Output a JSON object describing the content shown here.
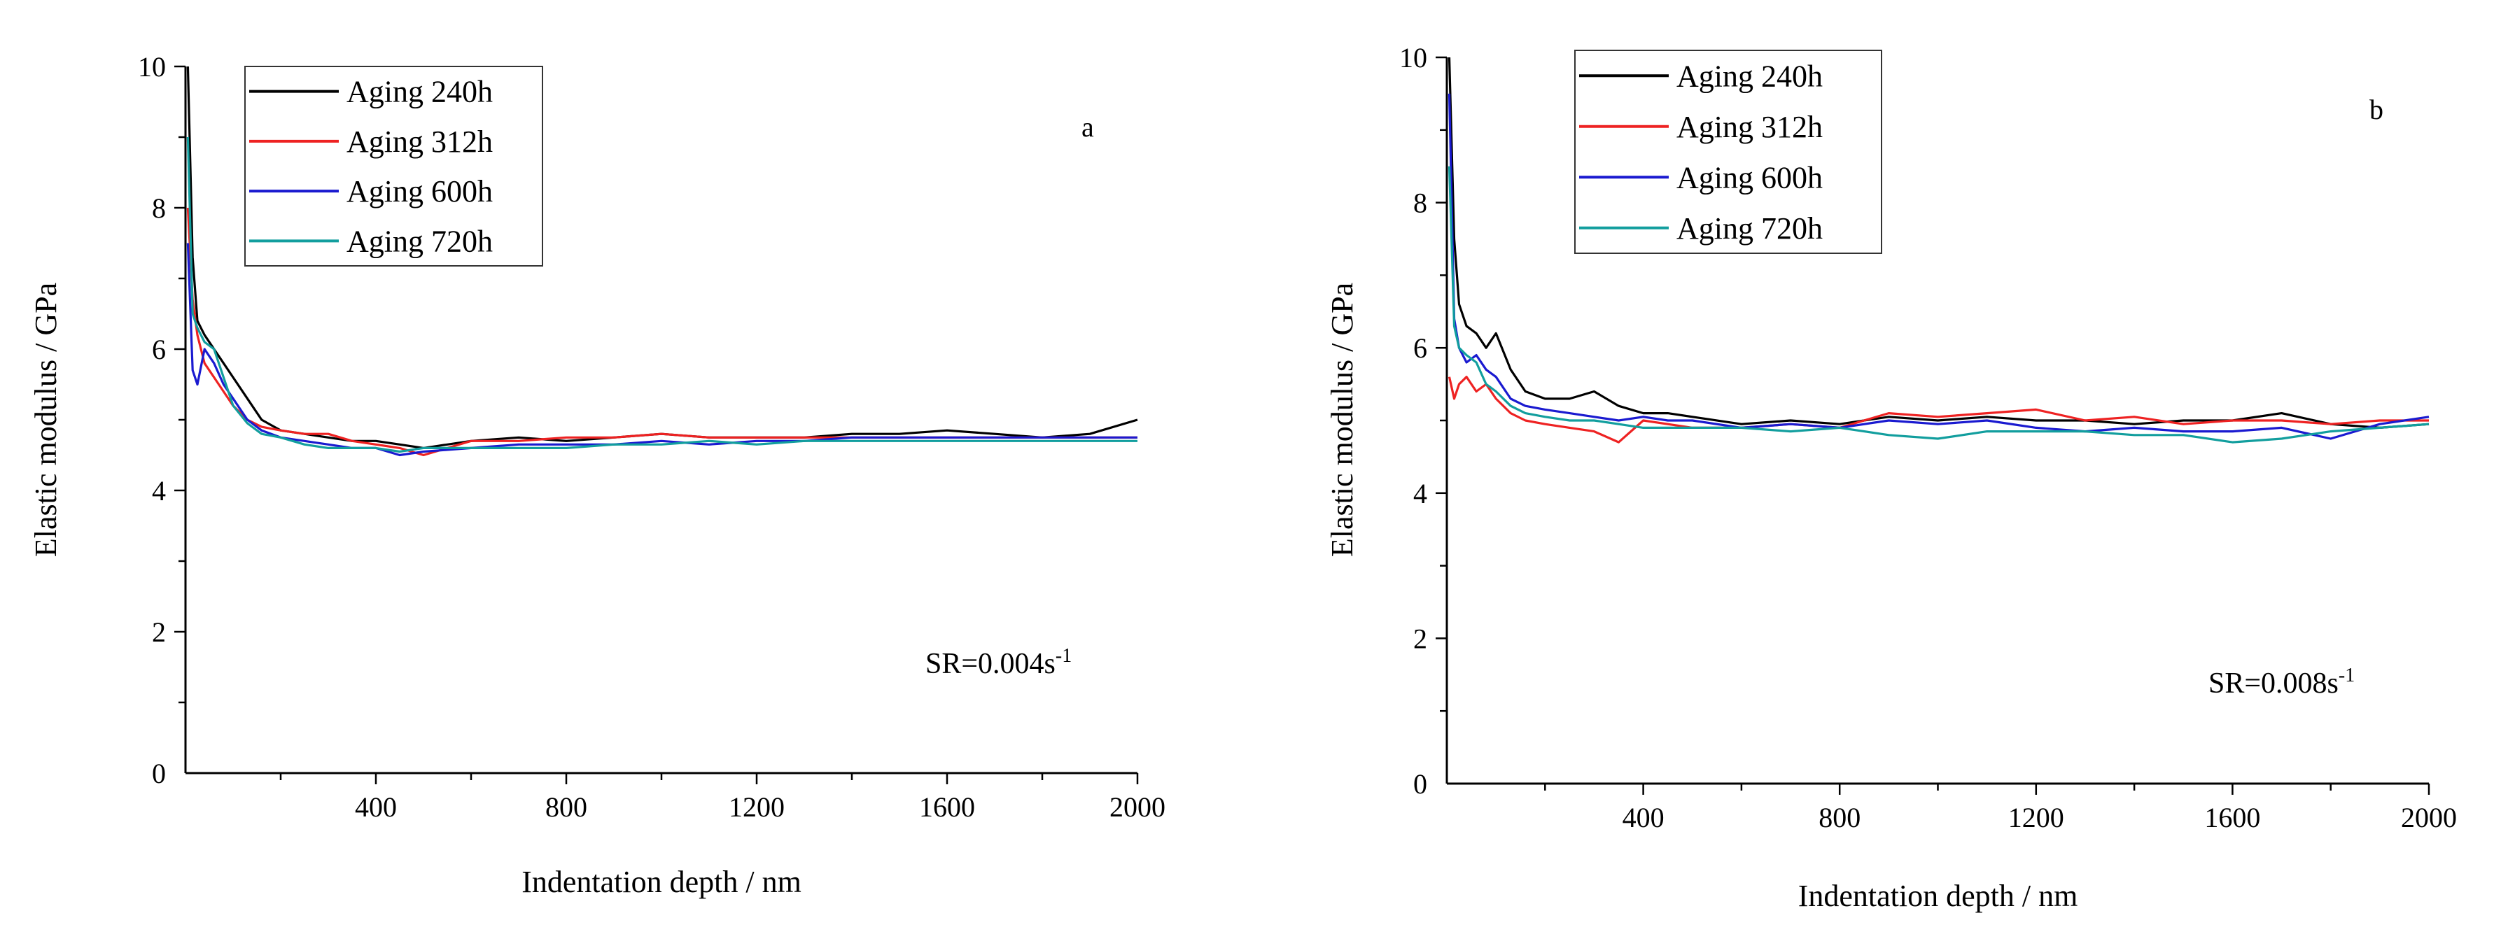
{
  "chart_data": [
    {
      "type": "line",
      "panel": "a",
      "xlabel": "Indentation depth / nm",
      "ylabel": "Elastic modulus / GPa",
      "xlim": [
        0,
        2000
      ],
      "ylim": [
        0,
        10
      ],
      "xticks": [
        400,
        800,
        1200,
        1600,
        2000
      ],
      "yticks": [
        0,
        2,
        4,
        6,
        8,
        10
      ],
      "annotation": {
        "text": "SR=0.004s",
        "sup": "-1"
      },
      "legend_position": "top-left",
      "series": [
        {
          "name": "Aging 240h",
          "color": "#000000",
          "x": [
            5,
            15,
            25,
            40,
            60,
            80,
            100,
            130,
            160,
            200,
            250,
            300,
            350,
            400,
            450,
            500,
            600,
            700,
            800,
            900,
            1000,
            1100,
            1200,
            1300,
            1400,
            1500,
            1600,
            1700,
            1800,
            1900,
            2000
          ],
          "y": [
            10.0,
            7.3,
            6.4,
            6.2,
            6.0,
            5.8,
            5.6,
            5.3,
            5.0,
            4.85,
            4.8,
            4.75,
            4.7,
            4.7,
            4.65,
            4.6,
            4.7,
            4.75,
            4.7,
            4.75,
            4.8,
            4.75,
            4.75,
            4.75,
            4.8,
            4.8,
            4.85,
            4.8,
            4.75,
            4.8,
            5.0
          ]
        },
        {
          "name": "Aging 312h",
          "color": "#ee2222",
          "x": [
            5,
            15,
            25,
            40,
            60,
            80,
            100,
            130,
            160,
            200,
            250,
            300,
            350,
            400,
            450,
            500,
            600,
            700,
            800,
            900,
            1000,
            1100,
            1200,
            1300,
            1400,
            1500,
            1600,
            1700,
            1800,
            1900,
            2000
          ],
          "y": [
            8.0,
            6.7,
            6.2,
            5.8,
            5.6,
            5.4,
            5.2,
            5.0,
            4.9,
            4.85,
            4.8,
            4.8,
            4.7,
            4.65,
            4.6,
            4.5,
            4.7,
            4.7,
            4.75,
            4.75,
            4.8,
            4.75,
            4.75,
            4.75,
            4.75,
            4.75,
            4.75,
            4.75,
            4.75,
            4.75,
            4.75
          ]
        },
        {
          "name": "Aging 600h",
          "color": "#1a1ad0",
          "x": [
            5,
            15,
            25,
            40,
            60,
            80,
            100,
            130,
            160,
            200,
            250,
            300,
            350,
            400,
            450,
            500,
            600,
            700,
            800,
            900,
            1000,
            1100,
            1200,
            1300,
            1400,
            1500,
            1600,
            1700,
            1800,
            1900,
            2000
          ],
          "y": [
            7.5,
            5.7,
            5.5,
            6.0,
            5.8,
            5.5,
            5.3,
            5.0,
            4.85,
            4.75,
            4.7,
            4.65,
            4.6,
            4.6,
            4.5,
            4.55,
            4.6,
            4.65,
            4.65,
            4.65,
            4.7,
            4.65,
            4.7,
            4.7,
            4.75,
            4.75,
            4.75,
            4.75,
            4.75,
            4.75,
            4.75
          ]
        },
        {
          "name": "Aging 720h",
          "color": "#129e9e",
          "x": [
            5,
            15,
            25,
            40,
            60,
            80,
            100,
            130,
            160,
            200,
            250,
            300,
            350,
            400,
            450,
            500,
            600,
            700,
            800,
            900,
            1000,
            1100,
            1200,
            1300,
            1400,
            1500,
            1600,
            1700,
            1800,
            1900,
            2000
          ],
          "y": [
            9.0,
            6.5,
            6.3,
            6.1,
            6.0,
            5.6,
            5.2,
            4.95,
            4.8,
            4.75,
            4.65,
            4.6,
            4.6,
            4.6,
            4.55,
            4.6,
            4.6,
            4.6,
            4.6,
            4.65,
            4.65,
            4.7,
            4.65,
            4.7,
            4.7,
            4.7,
            4.7,
            4.7,
            4.7,
            4.7,
            4.7
          ]
        }
      ],
      "legend_entries": [
        "Aging 240h",
        "Aging 312h",
        "Aging 600h",
        "Aging 720h"
      ]
    },
    {
      "type": "line",
      "panel": "b",
      "xlabel": "Indentation depth / nm",
      "ylabel": "Elastic modulus / GPa",
      "xlim": [
        0,
        2000
      ],
      "ylim": [
        0,
        10
      ],
      "xticks": [
        400,
        800,
        1200,
        1600,
        2000
      ],
      "yticks": [
        0,
        2,
        4,
        6,
        8,
        10
      ],
      "annotation": {
        "text": "SR=0.008s",
        "sup": "-1"
      },
      "legend_position": "top-left",
      "series": [
        {
          "name": "Aging 240h",
          "color": "#000000",
          "x": [
            5,
            15,
            25,
            40,
            60,
            80,
            100,
            130,
            160,
            200,
            250,
            300,
            350,
            400,
            450,
            500,
            600,
            700,
            800,
            900,
            1000,
            1100,
            1200,
            1300,
            1400,
            1500,
            1600,
            1700,
            1800,
            1900,
            2000
          ],
          "y": [
            10.0,
            7.5,
            6.6,
            6.3,
            6.2,
            6.0,
            6.2,
            5.7,
            5.4,
            5.3,
            5.3,
            5.4,
            5.2,
            5.1,
            5.1,
            5.05,
            4.95,
            5.0,
            4.95,
            5.05,
            5.0,
            5.05,
            5.0,
            5.0,
            4.95,
            5.0,
            5.0,
            5.1,
            4.95,
            4.9,
            4.95
          ]
        },
        {
          "name": "Aging 312h",
          "color": "#ee2222",
          "x": [
            5,
            15,
            25,
            40,
            60,
            80,
            100,
            130,
            160,
            200,
            250,
            300,
            350,
            400,
            450,
            500,
            600,
            700,
            800,
            900,
            1000,
            1100,
            1200,
            1300,
            1400,
            1500,
            1600,
            1700,
            1800,
            1900,
            2000
          ],
          "y": [
            5.6,
            5.3,
            5.5,
            5.6,
            5.4,
            5.5,
            5.3,
            5.1,
            5.0,
            4.95,
            4.9,
            4.85,
            4.7,
            5.0,
            4.95,
            4.9,
            4.9,
            4.95,
            4.9,
            5.1,
            5.05,
            5.1,
            5.15,
            5.0,
            5.05,
            4.95,
            5.0,
            5.0,
            4.95,
            5.0,
            5.0
          ]
        },
        {
          "name": "Aging 600h",
          "color": "#1a1ad0",
          "x": [
            5,
            15,
            25,
            40,
            60,
            80,
            100,
            130,
            160,
            200,
            250,
            300,
            350,
            400,
            450,
            500,
            600,
            700,
            800,
            900,
            1000,
            1100,
            1200,
            1300,
            1400,
            1500,
            1600,
            1700,
            1800,
            1900,
            2000
          ],
          "y": [
            9.5,
            6.4,
            6.0,
            5.8,
            5.9,
            5.7,
            5.6,
            5.3,
            5.2,
            5.15,
            5.1,
            5.05,
            5.0,
            5.05,
            5.0,
            5.0,
            4.9,
            4.95,
            4.9,
            5.0,
            4.95,
            5.0,
            4.9,
            4.85,
            4.9,
            4.85,
            4.85,
            4.9,
            4.75,
            4.95,
            5.05
          ]
        },
        {
          "name": "Aging 720h",
          "color": "#129e9e",
          "x": [
            5,
            15,
            25,
            40,
            60,
            80,
            100,
            130,
            160,
            200,
            250,
            300,
            350,
            400,
            450,
            500,
            600,
            700,
            800,
            900,
            1000,
            1100,
            1200,
            1300,
            1400,
            1500,
            1600,
            1700,
            1800,
            1900,
            2000
          ],
          "y": [
            8.5,
            6.3,
            6.0,
            5.9,
            5.8,
            5.5,
            5.4,
            5.2,
            5.1,
            5.05,
            5.0,
            5.0,
            4.95,
            4.9,
            4.9,
            4.9,
            4.9,
            4.85,
            4.9,
            4.8,
            4.75,
            4.85,
            4.85,
            4.85,
            4.8,
            4.8,
            4.7,
            4.75,
            4.85,
            4.9,
            4.95
          ]
        }
      ],
      "legend_entries": [
        "Aging 240h",
        "Aging 312h",
        "Aging 600h",
        "Aging 720h"
      ]
    }
  ]
}
